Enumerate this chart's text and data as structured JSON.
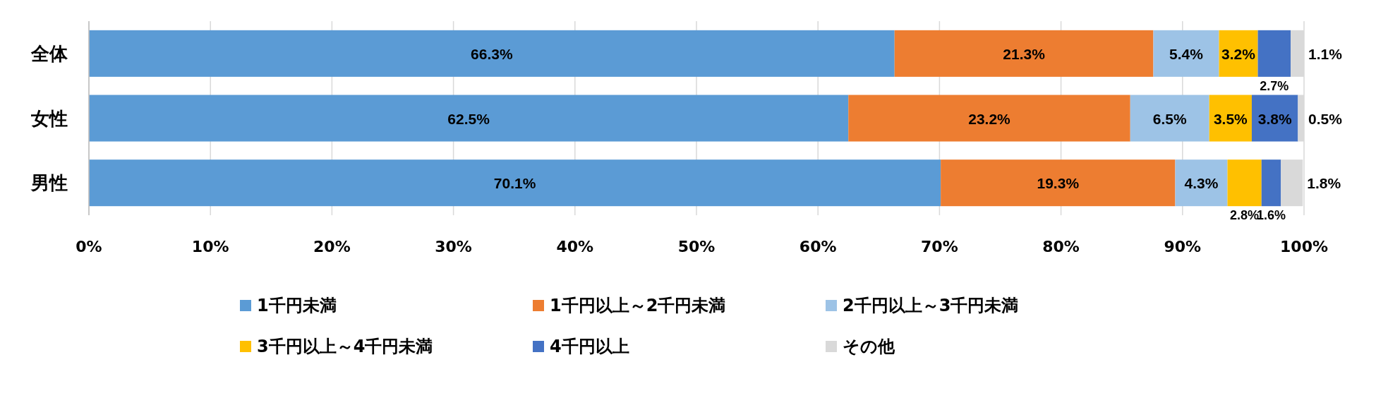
{
  "chart_data": {
    "type": "bar",
    "orientation": "horizontal",
    "stacked": true,
    "categories": [
      "全体",
      "女性",
      "男性"
    ],
    "series": [
      {
        "name": "1千円未満",
        "color": "#5b9bd5",
        "values": [
          66.3,
          62.5,
          70.1
        ],
        "value_labels": [
          "66.3%",
          "62.5%",
          "70.1%"
        ]
      },
      {
        "name": "1千円以上～2千円未満",
        "color": "#ed7d31",
        "values": [
          21.3,
          23.2,
          19.3
        ],
        "value_labels": [
          "21.3%",
          "23.2%",
          "19.3%"
        ]
      },
      {
        "name": "2千円以上～3千円未満",
        "color": "#9dc3e6",
        "values": [
          5.4,
          6.5,
          4.3
        ],
        "value_labels": [
          "5.4%",
          "6.5%",
          "4.3%"
        ]
      },
      {
        "name": "3千円以上～4千円未満",
        "color": "#ffc000",
        "values": [
          3.2,
          3.5,
          2.8
        ],
        "value_labels": [
          "3.2%",
          "3.5%",
          "2.8%"
        ]
      },
      {
        "name": "4千円以上",
        "color": "#4472c4",
        "values": [
          2.7,
          3.8,
          1.6
        ],
        "value_labels": [
          "2.7%",
          "3.8%",
          "1.6%"
        ]
      },
      {
        "name": "その他",
        "color": "#d9d9d9",
        "values": [
          1.1,
          0.5,
          1.8
        ],
        "value_labels": [
          "1.1%",
          "0.5%",
          "1.8%"
        ]
      }
    ],
    "xlim": [
      0,
      100
    ],
    "xticks": [
      {
        "value": 0,
        "label": "0%"
      },
      {
        "value": 10,
        "label": "10%"
      },
      {
        "value": 20,
        "label": "20%"
      },
      {
        "value": 30,
        "label": "30%"
      },
      {
        "value": 40,
        "label": "40%"
      },
      {
        "value": 50,
        "label": "50%"
      },
      {
        "value": 60,
        "label": "60%"
      },
      {
        "value": 70,
        "label": "70%"
      },
      {
        "value": 80,
        "label": "80%"
      },
      {
        "value": 90,
        "label": "90%"
      },
      {
        "value": 100,
        "label": "100%"
      }
    ],
    "grid": "x",
    "legend": "bottom"
  }
}
